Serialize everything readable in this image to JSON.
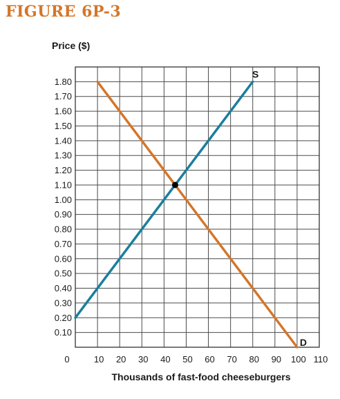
{
  "figure": {
    "title": "FIGURE 6P-3",
    "title_color": "#d4762a"
  },
  "chart_data": {
    "type": "line",
    "xlabel": "Thousands of fast-food cheeseburgers",
    "ylabel": "Price ($)",
    "xlim": [
      0,
      110
    ],
    "ylim": [
      0,
      1.9
    ],
    "x_ticks": [
      0,
      10,
      20,
      30,
      40,
      50,
      60,
      70,
      80,
      90,
      100,
      110
    ],
    "x_tick_labels": [
      "0",
      "10",
      "20",
      "30",
      "40",
      "50",
      "60",
      "70",
      "80",
      "90",
      "100",
      "110"
    ],
    "y_ticks": [
      0.1,
      0.2,
      0.3,
      0.4,
      0.5,
      0.6,
      0.7,
      0.8,
      0.9,
      1.0,
      1.1,
      1.2,
      1.3,
      1.4,
      1.5,
      1.6,
      1.7,
      1.8
    ],
    "y_tick_labels": [
      "0.10",
      "0.20",
      "0.30",
      "0.40",
      "0.50",
      "0.60",
      "0.70",
      "0.80",
      "0.90",
      "1.00",
      "1.10",
      "1.20",
      "1.30",
      "1.40",
      "1.50",
      "1.60",
      "1.70",
      "1.80"
    ],
    "grid": true,
    "series": [
      {
        "name": "S",
        "color": "#1a7f9c",
        "x": [
          0,
          80
        ],
        "y": [
          0.2,
          1.8
        ]
      },
      {
        "name": "D",
        "color": "#d4762a",
        "x": [
          10,
          100
        ],
        "y": [
          1.8,
          0
        ]
      }
    ],
    "equilibrium": {
      "x": 45,
      "y": 1.1,
      "color": "#000000"
    }
  }
}
